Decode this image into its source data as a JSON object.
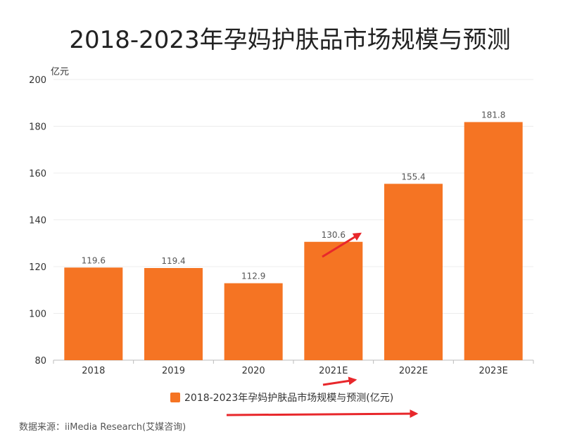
{
  "chart_data": {
    "type": "bar",
    "title": "2018-2023年孕妈护肤品市场规模与预测",
    "unit": "亿元",
    "categories": [
      "2018",
      "2019",
      "2020",
      "2021E",
      "2022E",
      "2023E"
    ],
    "series": [
      {
        "name": "2018-2023年孕妈护肤品市场规模与预测(亿元)",
        "values": [
          119.6,
          119.4,
          112.9,
          130.6,
          155.4,
          181.8
        ],
        "value_labels": [
          "119.6",
          "119.4",
          "112.9",
          "130.6",
          "155.4",
          "181.8"
        ]
      }
    ],
    "ylim": [
      80,
      200
    ],
    "yticks": [
      80,
      100,
      120,
      140,
      160,
      180,
      200
    ],
    "ytick_labels": [
      "80",
      "100",
      "120",
      "140",
      "160",
      "180",
      "200"
    ],
    "grid": true,
    "legend_position": "bottom",
    "colors": {
      "bar": "#f57423",
      "grid": "#ececec",
      "axis": "#bbbbbb",
      "annotation_arrow": "#e8272b"
    }
  },
  "source_note": "数据来源：iiMedia Research(艾媒咨询)"
}
